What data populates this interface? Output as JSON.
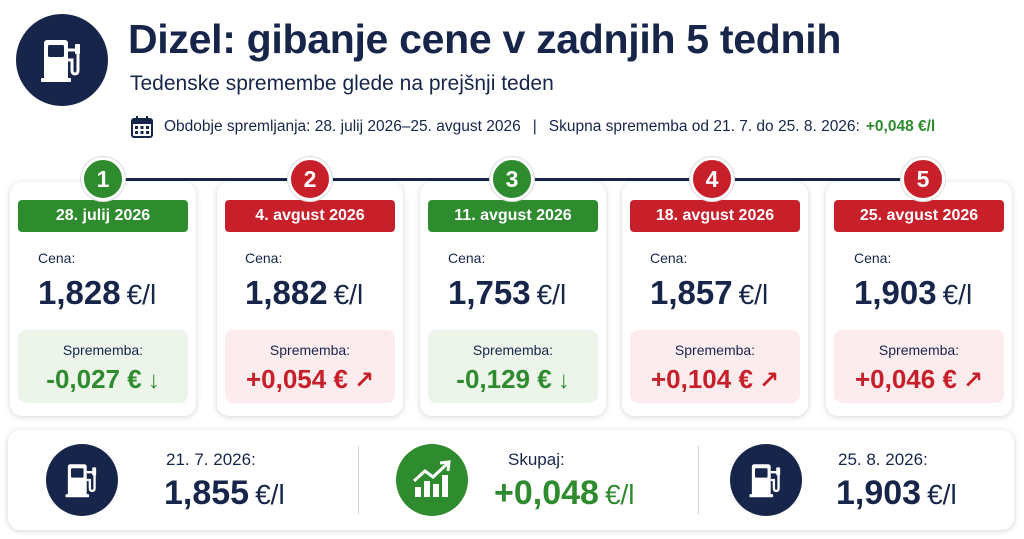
{
  "header": {
    "title": "Dizel: gibanje cene v zadnjih 5 tednih",
    "subtitle": "Tedenske spremembe glede na prejšnji teden",
    "period_text": "Obdobje spremljanja: 28. julij 2026–25. avgust 2026",
    "separator": "|",
    "total_text": "Skupna sprememba od 21. 7. do 25. 8. 2026:",
    "total_value": "+0,048 €/l",
    "icon": "fuel-pump-icon"
  },
  "weeks": [
    {
      "step": "1",
      "date": "28. julij 2026",
      "price_label": "Cena:",
      "price": "1,828",
      "unit": "€/l",
      "change_label": "Sprememba:",
      "change": "-0,027 €",
      "arrow": "↓",
      "direction": "down"
    },
    {
      "step": "2",
      "date": "4. avgust 2026",
      "price_label": "Cena:",
      "price": "1,882",
      "unit": "€/l",
      "change_label": "Sprememba:",
      "change": "+0,054 €",
      "arrow": "↗",
      "direction": "up"
    },
    {
      "step": "3",
      "date": "11. avgust 2026",
      "price_label": "Cena:",
      "price": "1,753",
      "unit": "€/l",
      "change_label": "Sprememba:",
      "change": "-0,129 €",
      "arrow": "↓",
      "direction": "down"
    },
    {
      "step": "4",
      "date": "18. avgust 2026",
      "price_label": "Cena:",
      "price": "1,857",
      "unit": "€/l",
      "change_label": "Sprememba:",
      "change": "+0,104 €",
      "arrow": "↗",
      "direction": "up"
    },
    {
      "step": "5",
      "date": "25. avgust 2026",
      "price_label": "Cena:",
      "price": "1,903",
      "unit": "€/l",
      "change_label": "Sprememba:",
      "change": "+0,046 €",
      "arrow": "↗",
      "direction": "up"
    }
  ],
  "summary": {
    "start": {
      "label": "21. 7. 2026:",
      "value": "1,855",
      "unit": "€/l",
      "icon": "fuel-pump-icon"
    },
    "total": {
      "label": "Skupaj:",
      "value": "+0,048",
      "unit": "€/l",
      "icon": "growth-chart-icon"
    },
    "end": {
      "label": "25. 8. 2026:",
      "value": "1,903",
      "unit": "€/l",
      "icon": "fuel-pump-icon"
    }
  },
  "colors": {
    "navy": "#17254a",
    "green": "#2e8b2e",
    "red": "#c8202a",
    "green_light": "#edf5ea",
    "red_light": "#fceced"
  }
}
